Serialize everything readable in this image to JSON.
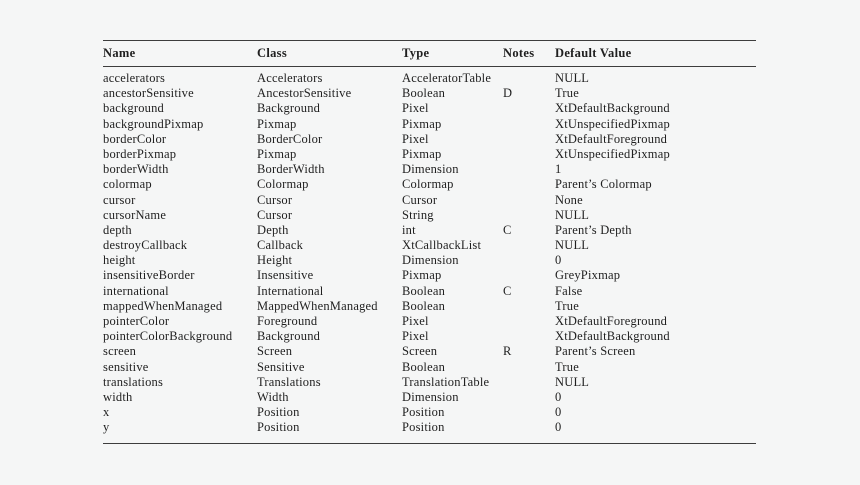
{
  "page": {
    "background_color": "#f5f6f6",
    "text_color": "#1f1f1f",
    "rule_color": "#3d3d3d"
  },
  "table": {
    "columns": [
      {
        "key": "name",
        "label": "Name"
      },
      {
        "key": "class",
        "label": "Class"
      },
      {
        "key": "type",
        "label": "Type"
      },
      {
        "key": "notes",
        "label": "Notes"
      },
      {
        "key": "default",
        "label": "Default Value"
      }
    ],
    "rows": [
      {
        "name": "accelerators",
        "class": "Accelerators",
        "type": "AcceleratorTable",
        "notes": "",
        "default": "NULL"
      },
      {
        "name": "ancestorSensitive",
        "class": "AncestorSensitive",
        "type": "Boolean",
        "notes": "D",
        "default": "True"
      },
      {
        "name": "background",
        "class": "Background",
        "type": "Pixel",
        "notes": "",
        "default": "XtDefaultBackground"
      },
      {
        "name": "backgroundPixmap",
        "class": "Pixmap",
        "type": "Pixmap",
        "notes": "",
        "default": "XtUnspecifiedPixmap"
      },
      {
        "name": "borderColor",
        "class": "BorderColor",
        "type": "Pixel",
        "notes": "",
        "default": "XtDefaultForeground"
      },
      {
        "name": "borderPixmap",
        "class": "Pixmap",
        "type": "Pixmap",
        "notes": "",
        "default": "XtUnspecifiedPixmap"
      },
      {
        "name": "borderWidth",
        "class": "BorderWidth",
        "type": "Dimension",
        "notes": "",
        "default": "1"
      },
      {
        "name": "colormap",
        "class": "Colormap",
        "type": "Colormap",
        "notes": "",
        "default": "Parent’s Colormap"
      },
      {
        "name": "cursor",
        "class": "Cursor",
        "type": "Cursor",
        "notes": "",
        "default": "None"
      },
      {
        "name": "cursorName",
        "class": "Cursor",
        "type": "String",
        "notes": "",
        "default": "NULL"
      },
      {
        "name": "depth",
        "class": "Depth",
        "type": "int",
        "notes": "C",
        "default": "Parent’s Depth"
      },
      {
        "name": "destroyCallback",
        "class": "Callback",
        "type": "XtCallbackList",
        "notes": "",
        "default": "NULL"
      },
      {
        "name": "height",
        "class": "Height",
        "type": "Dimension",
        "notes": "",
        "default": "0"
      },
      {
        "name": "insensitiveBorder",
        "class": "Insensitive",
        "type": "Pixmap",
        "notes": "",
        "default": "GreyPixmap"
      },
      {
        "name": "international",
        "class": "International",
        "type": "Boolean",
        "notes": "C",
        "default": "False"
      },
      {
        "name": "mappedWhenManaged",
        "class": "MappedWhenManaged",
        "type": "Boolean",
        "notes": "",
        "default": "True"
      },
      {
        "name": "pointerColor",
        "class": "Foreground",
        "type": "Pixel",
        "notes": "",
        "default": "XtDefaultForeground"
      },
      {
        "name": "pointerColorBackground",
        "class": "Background",
        "type": "Pixel",
        "notes": "",
        "default": "XtDefaultBackground"
      },
      {
        "name": "screen",
        "class": "Screen",
        "type": "Screen",
        "notes": "R",
        "default": "Parent’s Screen"
      },
      {
        "name": "sensitive",
        "class": "Sensitive",
        "type": "Boolean",
        "notes": "",
        "default": "True"
      },
      {
        "name": "translations",
        "class": "Translations",
        "type": "TranslationTable",
        "notes": "",
        "default": "NULL"
      },
      {
        "name": "width",
        "class": "Width",
        "type": "Dimension",
        "notes": "",
        "default": "0"
      },
      {
        "name": "x",
        "class": "Position",
        "type": "Position",
        "notes": "",
        "default": "0"
      },
      {
        "name": "y",
        "class": "Position",
        "type": "Position",
        "notes": "",
        "default": "0"
      }
    ]
  }
}
